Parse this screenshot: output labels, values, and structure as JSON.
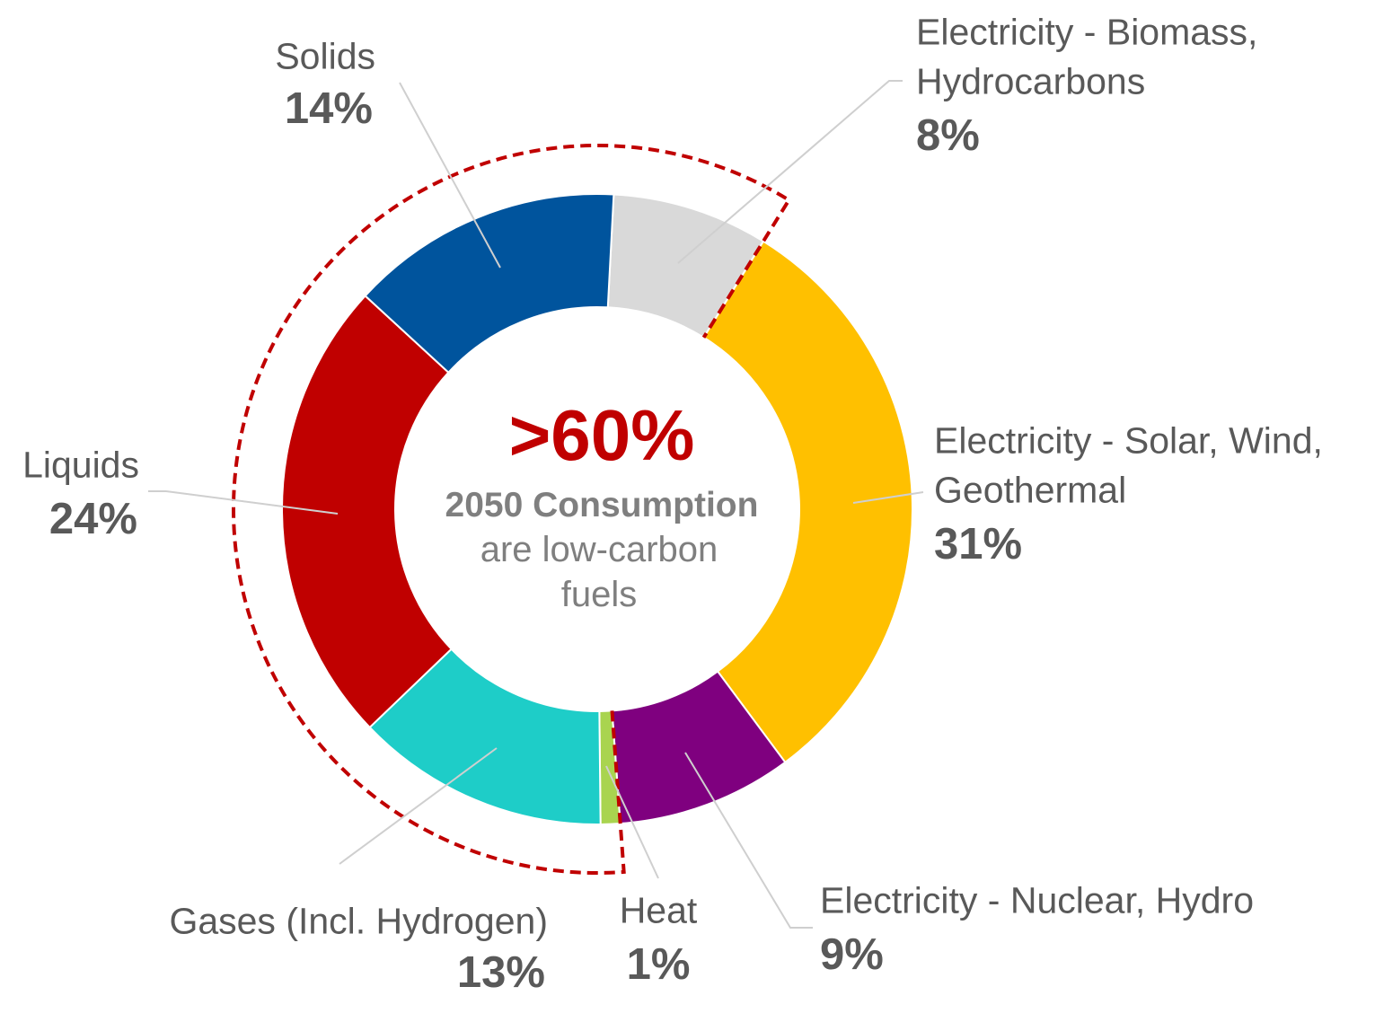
{
  "chart_data": {
    "type": "pie",
    "subtype": "donut",
    "start_angle_deg": 3,
    "slices": [
      {
        "name": "Electricity - Biomass, Hydrocarbons",
        "name_lines": [
          "Electricity - Biomass,",
          "Hydrocarbons"
        ],
        "pct_label": "8%",
        "value": 8,
        "color": "#D9D9D9"
      },
      {
        "name": "Electricity - Solar, Wind, Geothermal",
        "name_lines": [
          "Electricity - Solar, Wind,",
          "Geothermal"
        ],
        "pct_label": "31%",
        "value": 31,
        "color": "#FFC000"
      },
      {
        "name": "Electricity - Nuclear, Hydro",
        "name_lines": [
          "Electricity - Nuclear, Hydro"
        ],
        "pct_label": "9%",
        "value": 9,
        "color": "#7F007F"
      },
      {
        "name": "Heat",
        "name_lines": [
          "Heat"
        ],
        "pct_label": "1%",
        "value": 1,
        "color": "#A9D44F"
      },
      {
        "name": "Gases (Incl. Hydrogen)",
        "name_lines": [
          "Gases (Incl. Hydrogen)"
        ],
        "pct_label": "13%",
        "value": 13,
        "color": "#1ECDC8"
      },
      {
        "name": "Liquids",
        "name_lines": [
          "Liquids"
        ],
        "pct_label": "24%",
        "value": 24,
        "color": "#C00000"
      },
      {
        "name": "Solids",
        "name_lines": [
          "Solids"
        ],
        "pct_label": "14%",
        "value": 14,
        "color": "#00549D"
      }
    ],
    "center": {
      "headline": ">60%",
      "line1": "2050 Consumption",
      "line2": "are low-carbon",
      "line3": "fuels",
      "headline_color": "#C00000"
    },
    "highlight": {
      "covers": [
        "Heat",
        "Gases (Incl. Hydrogen)",
        "Liquids",
        "Solids",
        "Electricity - Biomass, Hydrocarbons"
      ],
      "color": "#C00000"
    }
  }
}
